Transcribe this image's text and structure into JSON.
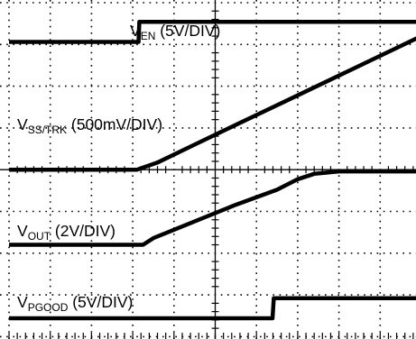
{
  "chart_data": {
    "type": "line",
    "title": "",
    "grid": true,
    "divisions": {
      "x": 10,
      "y": 8
    },
    "x_unit": "DIV",
    "y_unit": "DIV",
    "xlim": [
      0,
      10
    ],
    "ylim": [
      0,
      8
    ],
    "series": [
      {
        "name": "V_EN (5V/DIV)",
        "label": {
          "main": "V",
          "sub": "EN",
          "rest": " (5V/DIV)"
        },
        "color": "#000000",
        "points": [
          [
            0,
            7.06
          ],
          [
            3.14,
            7.06
          ],
          [
            3.16,
            7.54
          ],
          [
            10,
            7.54
          ]
        ]
      },
      {
        "name": "V_SS/TRK (500mV/DIV)",
        "label": {
          "main": "V",
          "sub": "SS/TRK",
          "rest": " (500mV/DIV)"
        },
        "color": "#000000",
        "points": [
          [
            0,
            4.0
          ],
          [
            3.1,
            4.0
          ],
          [
            3.6,
            4.17
          ],
          [
            4.5,
            4.6
          ],
          [
            5.6,
            5.12
          ],
          [
            6.7,
            5.64
          ],
          [
            7.8,
            6.16
          ],
          [
            8.9,
            6.68
          ],
          [
            10,
            7.2
          ]
        ]
      },
      {
        "name": "V_OUT (2V/DIV)",
        "label": {
          "main": "V",
          "sub": "OUT",
          "rest": " (2V/DIV)"
        },
        "color": "#000000",
        "points": [
          [
            0,
            2.2
          ],
          [
            3.25,
            2.2
          ],
          [
            3.5,
            2.36
          ],
          [
            4.5,
            2.76
          ],
          [
            5.5,
            3.16
          ],
          [
            6.5,
            3.52
          ],
          [
            7.0,
            3.77
          ],
          [
            7.4,
            3.9
          ],
          [
            8.0,
            3.96
          ],
          [
            10,
            3.96
          ]
        ]
      },
      {
        "name": "V_PGOOD (5V/DIV)",
        "label": {
          "main": "V",
          "sub": "PGOOD",
          "rest": " (5V/DIV)"
        },
        "color": "#000000",
        "points": [
          [
            0,
            0.44
          ],
          [
            6.39,
            0.44
          ],
          [
            6.42,
            0.92
          ],
          [
            10,
            0.92
          ]
        ]
      }
    ]
  }
}
